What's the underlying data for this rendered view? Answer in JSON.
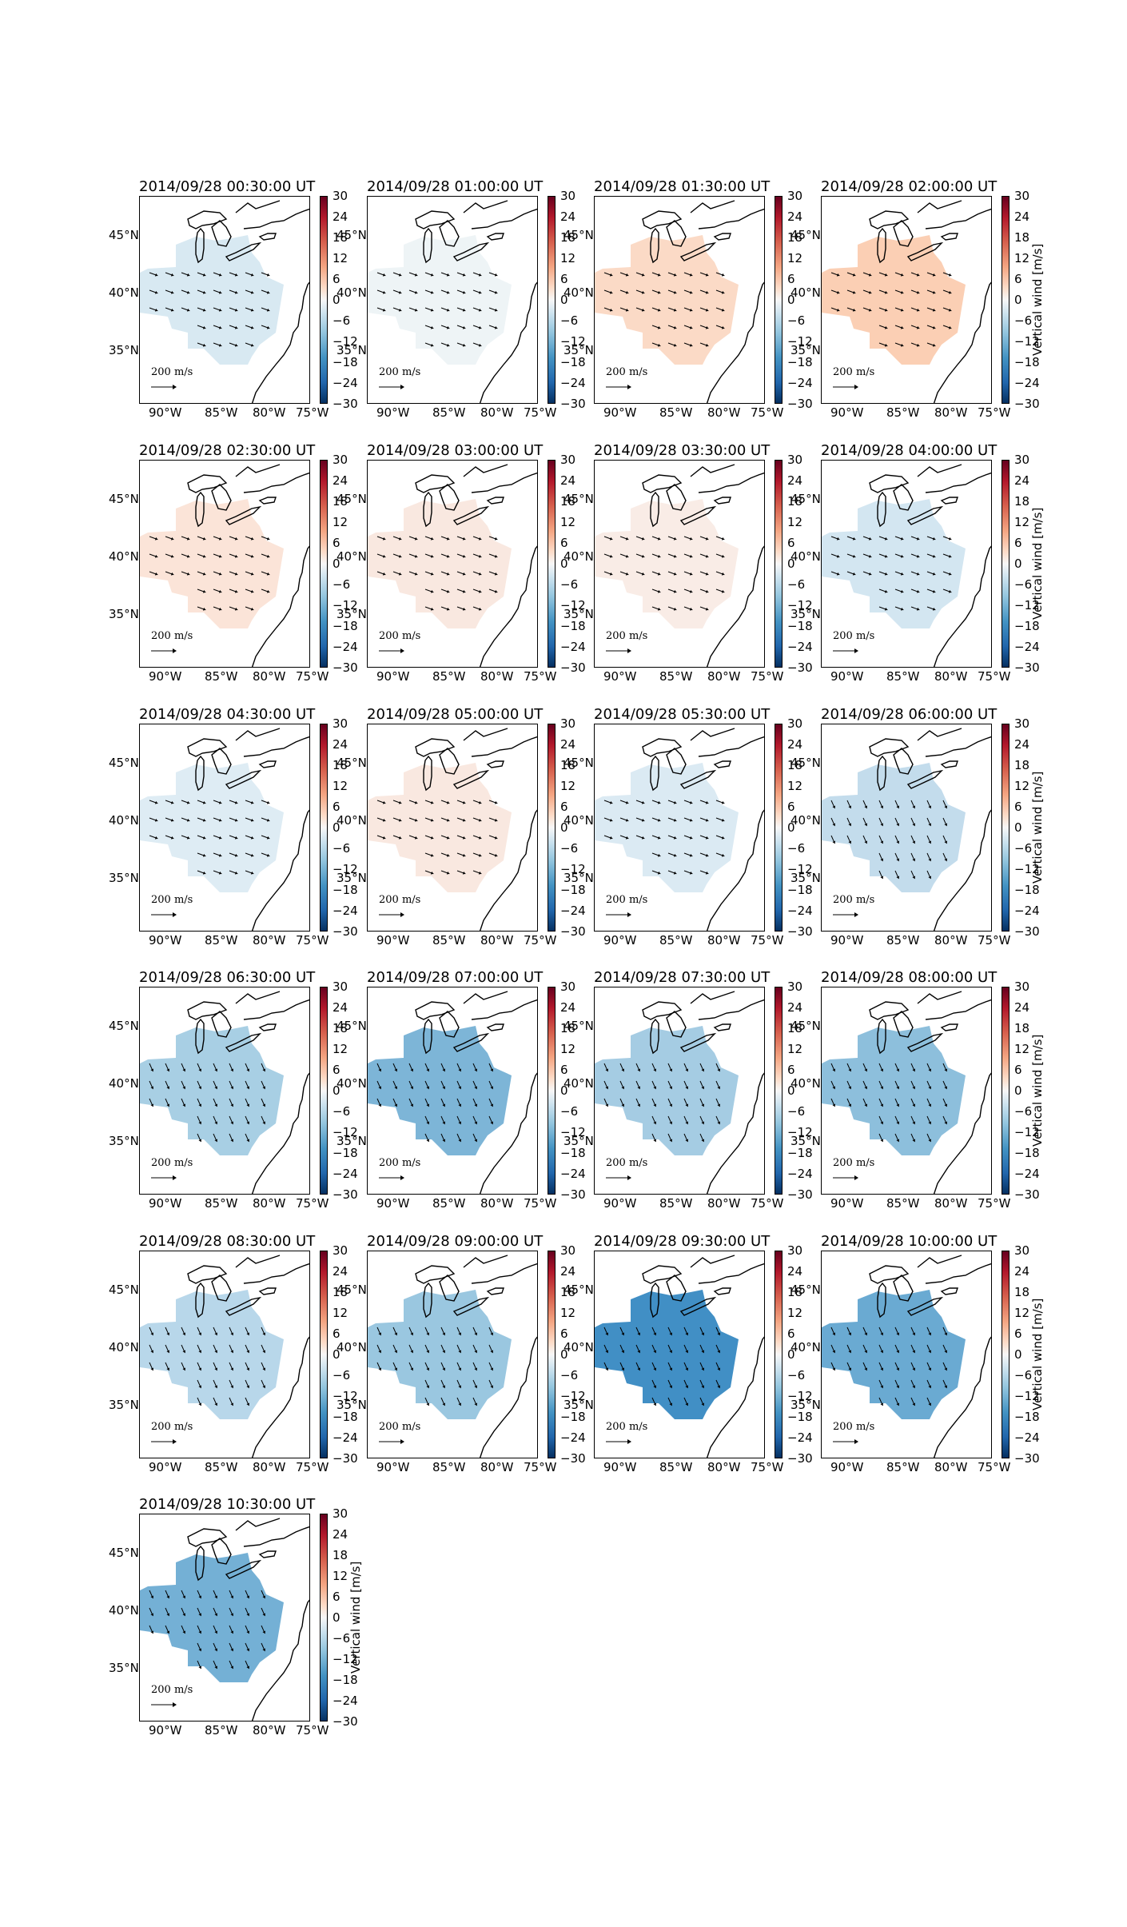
{
  "panels": [
    {
      "title": "2014/09/28 00:30:00 UT",
      "fill": "#d8e9f2",
      "show_cbar_label": false
    },
    {
      "title": "2014/09/28 01:00:00 UT",
      "fill": "#eef4f6",
      "show_cbar_label": false
    },
    {
      "title": "2014/09/28 01:30:00 UT",
      "fill": "#fbdac6",
      "show_cbar_label": false
    },
    {
      "title": "2014/09/28 02:00:00 UT",
      "fill": "#fbcfb4",
      "show_cbar_label": true
    },
    {
      "title": "2014/09/28 02:30:00 UT",
      "fill": "#fbe4d8",
      "show_cbar_label": false
    },
    {
      "title": "2014/09/28 03:00:00 UT",
      "fill": "#f9e8e0",
      "show_cbar_label": false
    },
    {
      "title": "2014/09/28 03:30:00 UT",
      "fill": "#f9ece6",
      "show_cbar_label": false
    },
    {
      "title": "2014/09/28 04:00:00 UT",
      "fill": "#d3e6f1",
      "show_cbar_label": true
    },
    {
      "title": "2014/09/28 04:30:00 UT",
      "fill": "#deecf4",
      "show_cbar_label": false
    },
    {
      "title": "2014/09/28 05:00:00 UT",
      "fill": "#f9e8e0",
      "show_cbar_label": false
    },
    {
      "title": "2014/09/28 05:30:00 UT",
      "fill": "#dbeaf3",
      "show_cbar_label": false
    },
    {
      "title": "2014/09/28 06:00:00 UT",
      "fill": "#c3dcec",
      "show_cbar_label": true
    },
    {
      "title": "2014/09/28 06:30:00 UT",
      "fill": "#a8cfe4",
      "show_cbar_label": false
    },
    {
      "title": "2014/09/28 07:00:00 UT",
      "fill": "#7db5d7",
      "show_cbar_label": false
    },
    {
      "title": "2014/09/28 07:30:00 UT",
      "fill": "#a5cce3",
      "show_cbar_label": false
    },
    {
      "title": "2014/09/28 08:00:00 UT",
      "fill": "#8dbfdc",
      "show_cbar_label": true
    },
    {
      "title": "2014/09/28 08:30:00 UT",
      "fill": "#b8d7ea",
      "show_cbar_label": false
    },
    {
      "title": "2014/09/28 09:00:00 UT",
      "fill": "#9ac7e0",
      "show_cbar_label": false
    },
    {
      "title": "2014/09/28 09:30:00 UT",
      "fill": "#418fc5",
      "show_cbar_label": false
    },
    {
      "title": "2014/09/28 10:00:00 UT",
      "fill": "#6aaad2",
      "show_cbar_label": true
    },
    {
      "title": "2014/09/28 10:30:00 UT",
      "fill": "#74b0d5",
      "show_cbar_label": true
    }
  ],
  "colorbar": {
    "ticks": [
      "30",
      "24",
      "18",
      "12",
      "6",
      "0",
      "−6",
      "−12",
      "−18",
      "−24",
      "−30"
    ],
    "label": "Vertical wind [m/s]",
    "colors": [
      "#67001f",
      "#b2182b",
      "#d6604d",
      "#f4a582",
      "#fddbc7",
      "#f7f7f7",
      "#d1e5f0",
      "#92c5de",
      "#4393c3",
      "#2166ac",
      "#053061"
    ]
  },
  "lat_ticks": [
    "45°N",
    "40°N",
    "35°N"
  ],
  "lon_ticks": [
    "90°W",
    "85°W",
    "80°W",
    "75°W"
  ],
  "scale_label": "200 m/s"
}
